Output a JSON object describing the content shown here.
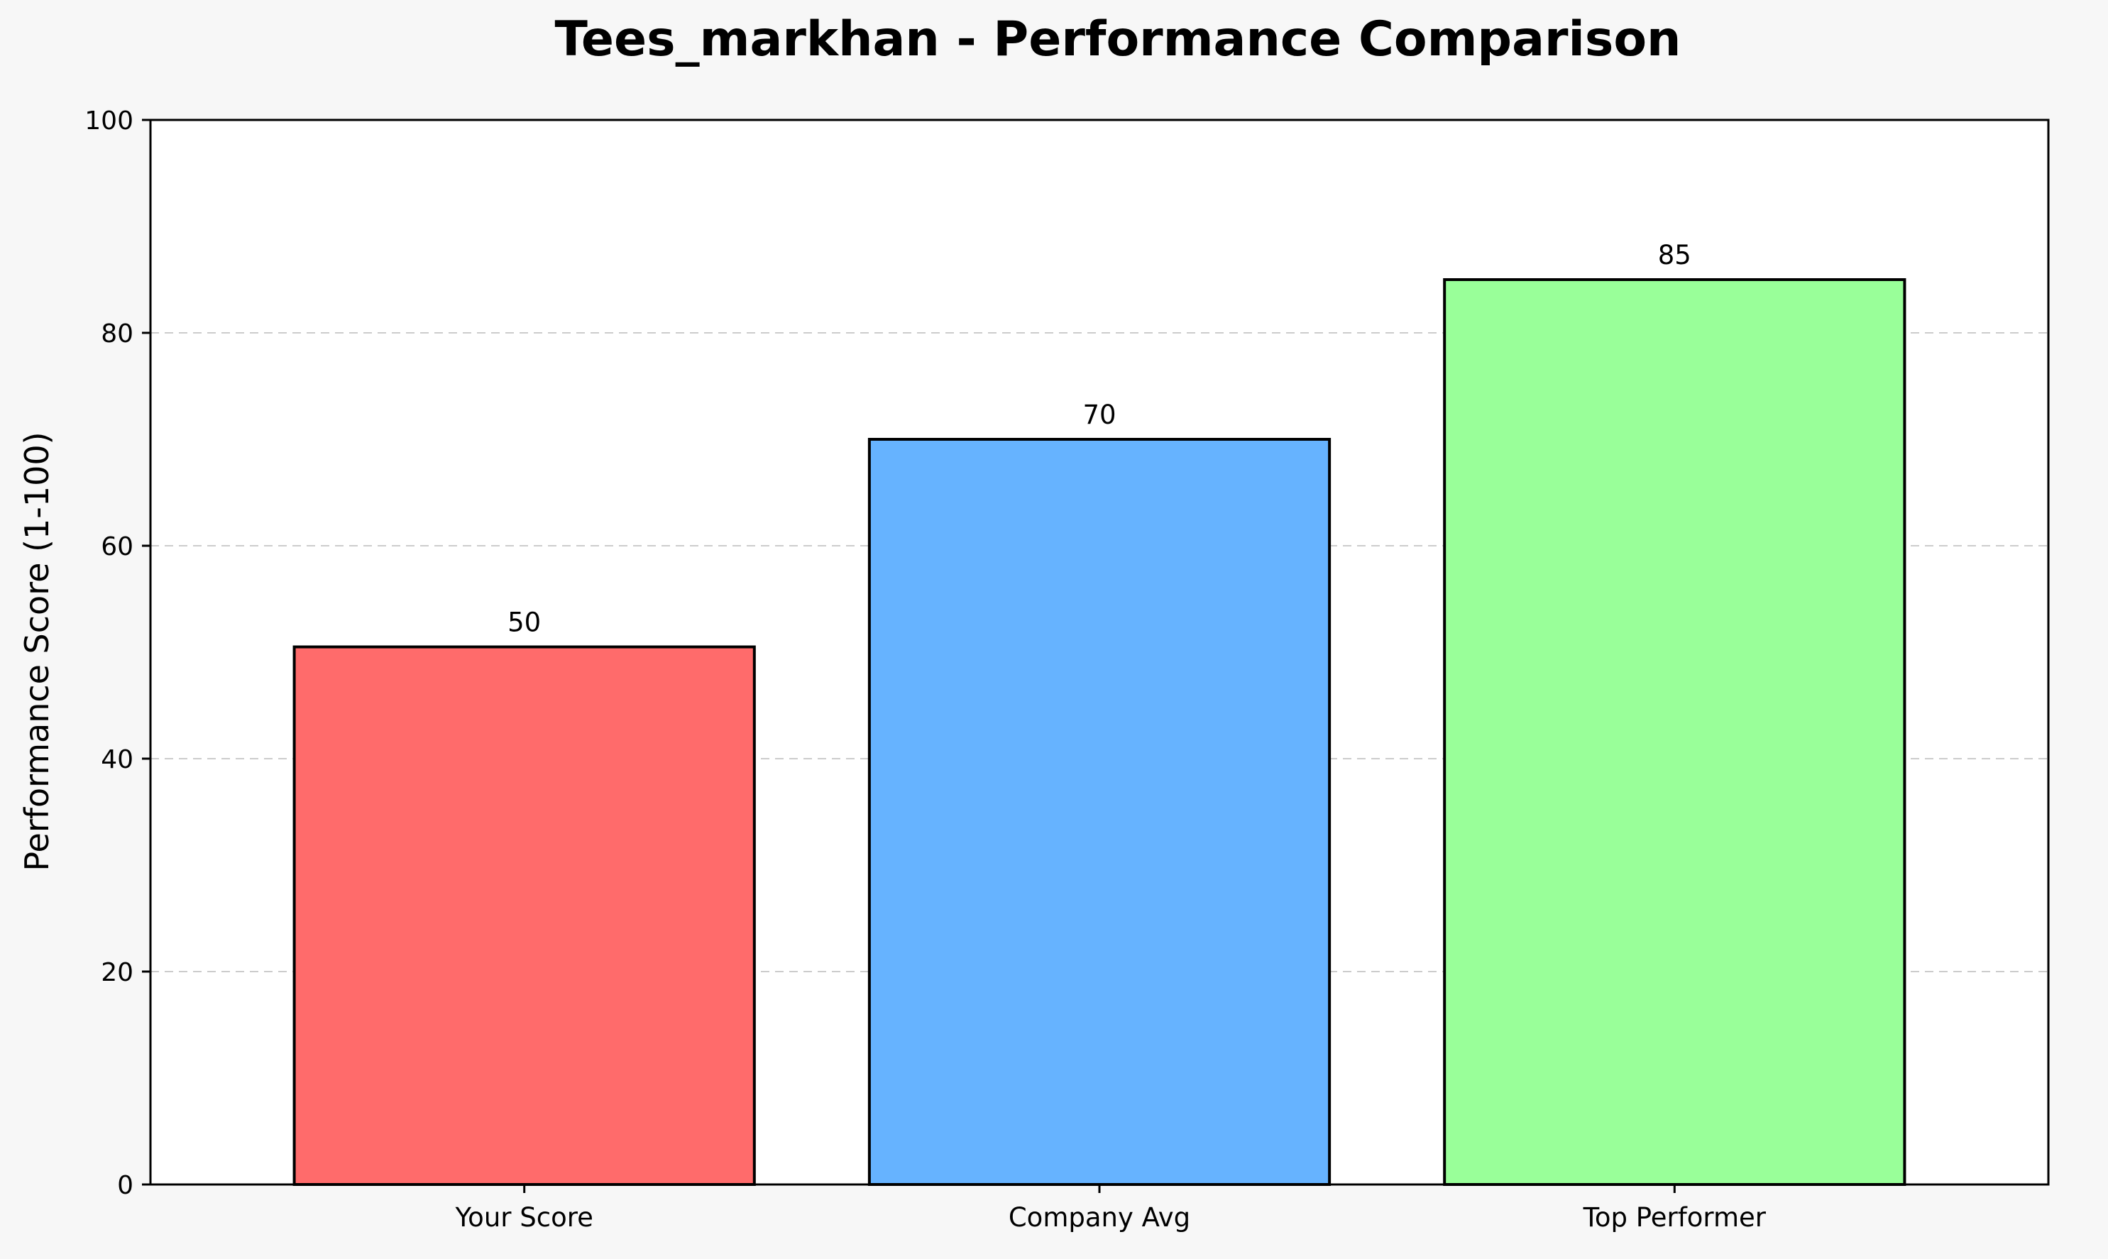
{
  "chart_data": {
    "type": "bar",
    "title": "Tees_markhan - Performance Comparison",
    "xlabel": "",
    "ylabel": "Performance Score (1-100)",
    "categories": [
      "Your Score",
      "Company Avg",
      "Top Performer"
    ],
    "values": [
      50.5,
      70,
      85
    ],
    "value_labels": [
      "50",
      "70",
      "85"
    ],
    "ylim": [
      0,
      100
    ],
    "yticks": [
      0,
      20,
      40,
      60,
      80,
      100
    ],
    "grid": "y-axis dashed",
    "colors": {
      "bars": [
        "#ff6b6b",
        "#66b3ff",
        "#99ff99"
      ],
      "bar_edge": "#000000",
      "figure_background": "#f7f7f7",
      "plot_background": "#ffffff",
      "grid": "#cccccc"
    }
  }
}
